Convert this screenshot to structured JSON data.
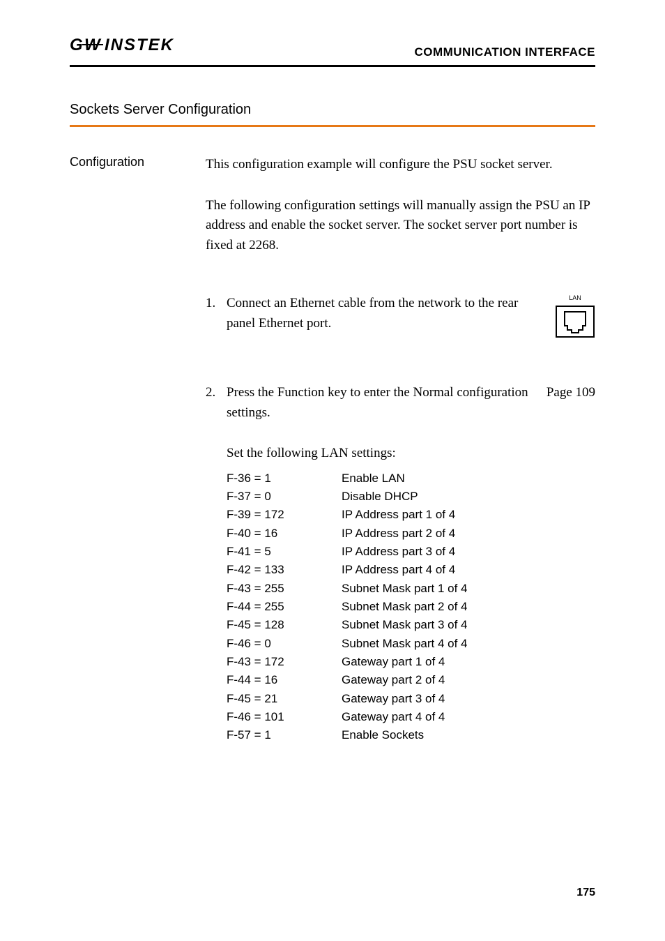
{
  "header": {
    "logo_text": "GWINSTEK",
    "title": "COMMUNICATION INTERFACE"
  },
  "section_title": "Sockets Server Configuration",
  "left_label": "Configuration",
  "paragraph1": "This configuration example will configure the PSU socket server.",
  "paragraph2": "The following configuration settings will manually assign the PSU an IP address and enable the socket server. The socket server port number is fixed at 2268.",
  "step1": {
    "num": "1.",
    "text": "Connect an Ethernet cable from the network to the rear panel Ethernet port.",
    "icon_label": "LAN"
  },
  "step2": {
    "num": "2.",
    "text": "Press the Function key to enter the Normal configuration settings.",
    "page_ref": "Page  109"
  },
  "settings_intro": "Set the following LAN settings:",
  "settings": [
    {
      "key": "F-36 = 1",
      "desc": "Enable LAN"
    },
    {
      "key": "F-37 = 0",
      "desc": "Disable DHCP"
    },
    {
      "key": "F-39 = 172",
      "desc": "IP Address part 1 of 4"
    },
    {
      "key": "F-40 = 16",
      "desc": "IP Address part 2 of 4"
    },
    {
      "key": "F-41 =  5",
      "desc": "IP Address part 3 of 4"
    },
    {
      "key": "F-42 =  133",
      "desc": "IP Address part 4 of 4"
    },
    {
      "key": "F-43 = 255",
      "desc": "Subnet Mask part 1 of 4"
    },
    {
      "key": "F-44 = 255",
      "desc": "Subnet Mask part 2 of 4"
    },
    {
      "key": "F-45 =  128",
      "desc": "Subnet Mask part 3 of 4"
    },
    {
      "key": "F-46 =  0",
      "desc": "Subnet Mask part 4 of 4"
    },
    {
      "key": "F-43 = 172",
      "desc": "Gateway part 1 of 4"
    },
    {
      "key": "F-44 = 16",
      "desc": "Gateway part 2 of 4"
    },
    {
      "key": "F-45 =  21",
      "desc": "Gateway part 3 of 4"
    },
    {
      "key": "F-46 =  101",
      "desc": "Gateway part 4 of 4"
    },
    {
      "key": "F-57 = 1",
      "desc": "Enable Sockets"
    }
  ],
  "page_number": "175",
  "colors": {
    "accent": "#e67817",
    "text": "#000000",
    "background": "#ffffff"
  }
}
